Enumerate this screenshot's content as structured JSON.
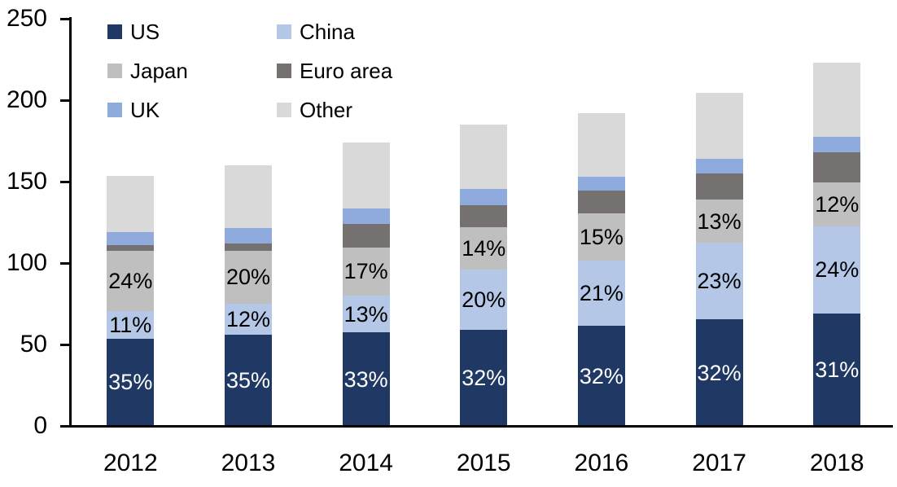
{
  "chart_data": {
    "type": "bar",
    "stacked": true,
    "title": "",
    "xlabel": "",
    "ylabel": "",
    "grid": false,
    "categories": [
      "2012",
      "2013",
      "2014",
      "2015",
      "2016",
      "2017",
      "2018"
    ],
    "series": [
      {
        "name": "US",
        "color": "#1f3864",
        "label_color": "#ffffff",
        "values": [
          53.7,
          56.0,
          57.4,
          59.2,
          61.4,
          65.4,
          69.1
        ],
        "labels": [
          "35%",
          "35%",
          "33%",
          "32%",
          "32%",
          "32%",
          "31%"
        ]
      },
      {
        "name": "China",
        "color": "#b4c7e7",
        "label_color": "#000000",
        "values": [
          16.9,
          19.2,
          22.6,
          37.0,
          40.3,
          47.0,
          53.5
        ],
        "labels": [
          "11%",
          "12%",
          "13%",
          "20%",
          "21%",
          "23%",
          "24%"
        ]
      },
      {
        "name": "Japan",
        "color": "#bfbfbf",
        "label_color": "#000000",
        "values": [
          36.8,
          32.3,
          29.6,
          25.9,
          28.8,
          26.6,
          26.8
        ],
        "labels": [
          "24%",
          "20%",
          "17%",
          "14%",
          "15%",
          "13%",
          "12%"
        ]
      },
      {
        "name": "Euro area",
        "color": "#767171",
        "label_color": null,
        "values": [
          3.6,
          4.6,
          14.6,
          13.5,
          14.2,
          15.8,
          18.4
        ],
        "labels": null
      },
      {
        "name": "UK",
        "color": "#8faadc",
        "label_color": null,
        "values": [
          8.0,
          9.2,
          9.3,
          10.0,
          8.5,
          9.3,
          9.8
        ],
        "labels": null
      },
      {
        "name": "Other",
        "color": "#d9d9d9",
        "label_color": null,
        "values": [
          34.5,
          38.7,
          40.5,
          39.4,
          38.8,
          40.4,
          45.4
        ],
        "labels": null
      }
    ],
    "totals": [
      153.5,
      160.0,
      174.0,
      185.0,
      192.0,
      204.5,
      223.0
    ],
    "y_axis": {
      "min": 0,
      "max": 250,
      "step": 50,
      "tick_labels": [
        "0",
        "50",
        "100",
        "150",
        "200",
        "250"
      ]
    },
    "legend": {
      "position": "top-left",
      "columns": 2,
      "items": [
        "US",
        "China",
        "Japan",
        "Euro area",
        "UK",
        "Other"
      ]
    },
    "axis_color": "#000000",
    "background_color": "#ffffff"
  }
}
